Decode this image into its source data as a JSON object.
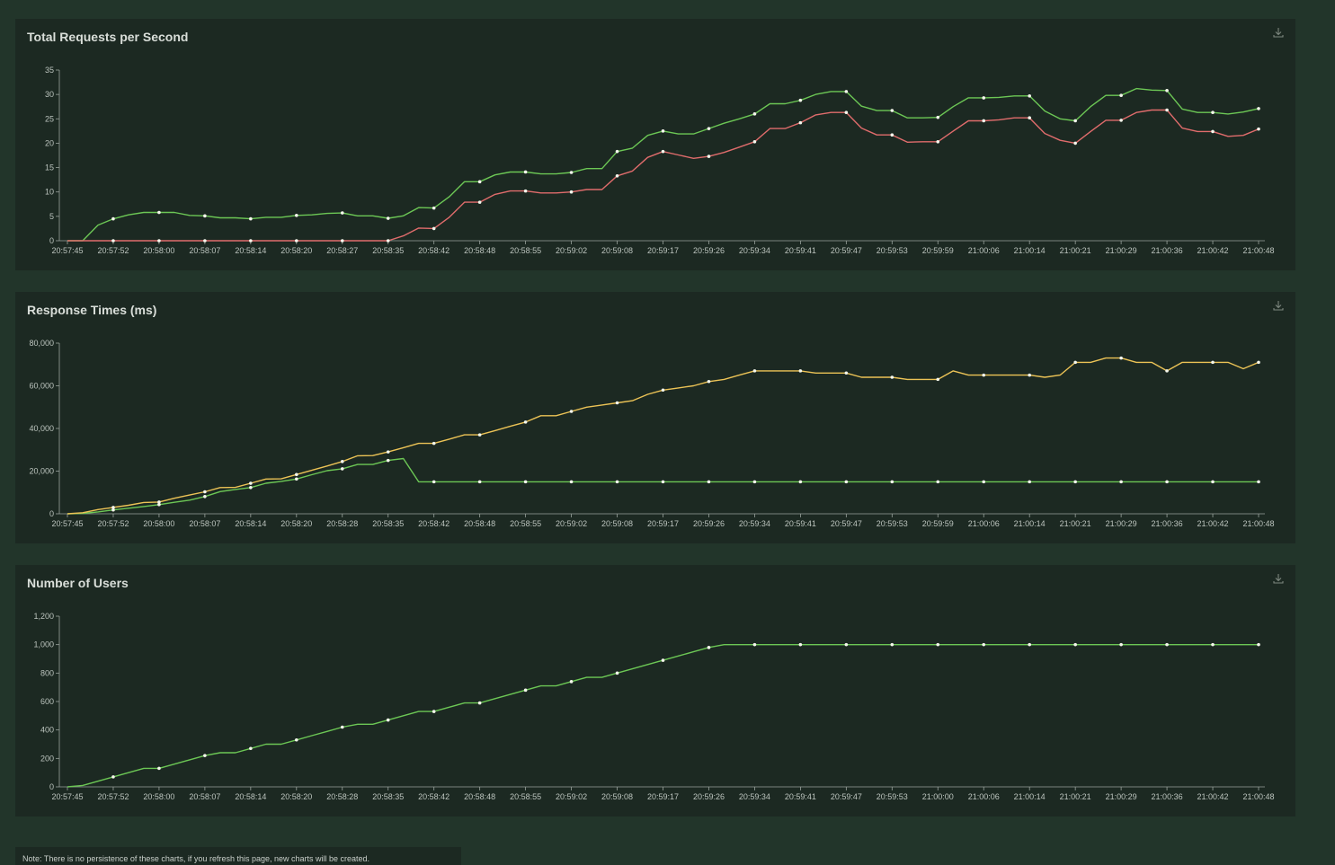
{
  "colors": {
    "green": "#6cc755",
    "red": "#e06c6c",
    "yellow": "#ecc356",
    "axis": "#9aa39d"
  },
  "icons": {
    "download": "download-icon"
  },
  "note": "Note: There is no persistence of these charts, if you refresh this page, new charts will be created.",
  "chart_data": [
    {
      "type": "line",
      "title": "Total Requests per Second",
      "ylim": [
        0,
        35
      ],
      "yticks": [
        "0",
        "5",
        "10",
        "15",
        "20",
        "25",
        "30",
        "35"
      ],
      "ytick_values": [
        0,
        5,
        10,
        15,
        20,
        25,
        30,
        35
      ],
      "xtick_labels": [
        "20:57:45",
        "20:57:52",
        "20:58:00",
        "20:58:07",
        "20:58:14",
        "20:58:20",
        "20:58:27",
        "20:58:35",
        "20:58:42",
        "20:58:48",
        "20:58:55",
        "20:59:02",
        "20:59:08",
        "20:59:17",
        "20:59:26",
        "20:59:34",
        "20:59:41",
        "20:59:47",
        "20:59:53",
        "20:59:59",
        "21:00:06",
        "21:00:14",
        "21:00:21",
        "21:00:29",
        "21:00:36",
        "21:00:42",
        "21:00:48"
      ],
      "series": [
        {
          "color": "#6cc755",
          "values": [
            0,
            0,
            3.2,
            4.5,
            5.3,
            5.8,
            5.8,
            5.8,
            5.2,
            5.1,
            4.7,
            4.7,
            4.5,
            4.8,
            4.8,
            5.2,
            5.3,
            5.6,
            5.7,
            5.1,
            5.1,
            4.6,
            5.1,
            6.8,
            6.7,
            9.0,
            12.1,
            12.1,
            13.5,
            14.1,
            14.1,
            13.7,
            13.7,
            14.0,
            14.8,
            14.8,
            18.3,
            19.0,
            21.6,
            22.5,
            21.9,
            21.9,
            23.0,
            24.1,
            25.0,
            26.0,
            28.1,
            28.1,
            28.8,
            30.0,
            30.6,
            30.6,
            27.6,
            26.7,
            26.7,
            25.2,
            25.2,
            25.3,
            27.5,
            29.3,
            29.3,
            29.4,
            29.7,
            29.7,
            26.6,
            25.0,
            24.6,
            27.5,
            29.8,
            29.8,
            31.2,
            30.9,
            30.8,
            27.0,
            26.3,
            26.3,
            26.0,
            26.4,
            27.1
          ]
        },
        {
          "color": "#e06c6c",
          "values": [
            0,
            0,
            0,
            0,
            0,
            0,
            0,
            0,
            0,
            0,
            0,
            0,
            0,
            0,
            0,
            0,
            0,
            0,
            0,
            0,
            0,
            0,
            1,
            2.6,
            2.5,
            4.8,
            7.9,
            7.9,
            9.5,
            10.2,
            10.2,
            9.8,
            9.8,
            10.0,
            10.5,
            10.5,
            13.3,
            14.3,
            17.1,
            18.3,
            17.6,
            16.9,
            17.3,
            18.1,
            19.2,
            20.3,
            23.0,
            23.0,
            24.2,
            25.8,
            26.3,
            26.3,
            23.1,
            21.7,
            21.7,
            20.2,
            20.3,
            20.3,
            22.5,
            24.6,
            24.6,
            24.8,
            25.2,
            25.2,
            22.0,
            20.6,
            20.0,
            22.4,
            24.7,
            24.7,
            26.3,
            26.8,
            26.8,
            23.1,
            22.4,
            22.4,
            21.4,
            21.6,
            22.9
          ]
        }
      ]
    },
    {
      "type": "line",
      "title": "Response Times (ms)",
      "ylim": [
        0,
        80000
      ],
      "yticks": [
        "0",
        "20,000",
        "40,000",
        "60,000",
        "80,000"
      ],
      "ytick_values": [
        0,
        20000,
        40000,
        60000,
        80000
      ],
      "xtick_labels": [
        "20:57:45",
        "20:57:52",
        "20:58:00",
        "20:58:07",
        "20:58:14",
        "20:58:20",
        "20:58:28",
        "20:58:35",
        "20:58:42",
        "20:58:48",
        "20:58:55",
        "20:59:02",
        "20:59:08",
        "20:59:17",
        "20:59:26",
        "20:59:34",
        "20:59:41",
        "20:59:47",
        "20:59:53",
        "20:59:59",
        "21:00:06",
        "21:00:14",
        "21:00:21",
        "21:00:29",
        "21:00:36",
        "21:00:42",
        "21:00:48"
      ],
      "series": [
        {
          "color": "#6cc755",
          "values": [
            0,
            200,
            900,
            1800,
            2600,
            3400,
            4300,
            5400,
            6400,
            8100,
            10400,
            11400,
            12300,
            14300,
            15200,
            16300,
            18300,
            20200,
            21100,
            23100,
            23100,
            25000,
            25900,
            15000,
            15000,
            15000,
            15000,
            15000,
            15000,
            15000,
            15000,
            15000,
            15000,
            15000,
            15000,
            15000,
            15000,
            15000,
            15000,
            15000,
            15000,
            15000,
            15000,
            15000,
            15000,
            15000,
            15000,
            15000,
            15000,
            15000,
            15000,
            15000,
            15000,
            15000,
            15000,
            15000,
            15000,
            15000,
            15000,
            15000,
            15000,
            15000,
            15000,
            15000,
            15000,
            15000,
            15000,
            15000,
            15000,
            15000,
            15000,
            15000,
            15000,
            15000,
            15000,
            15000,
            15000,
            15000,
            15000
          ]
        },
        {
          "color": "#ecc356",
          "values": [
            0,
            500,
            2000,
            3000,
            4000,
            5300,
            5500,
            7300,
            8800,
            10300,
            12300,
            12400,
            14300,
            16300,
            16400,
            18400,
            20400,
            22400,
            24500,
            27200,
            27300,
            29000,
            31000,
            33000,
            33000,
            35000,
            37000,
            37000,
            39000,
            41000,
            43000,
            46000,
            46000,
            48000,
            50000,
            51000,
            52000,
            53000,
            56000,
            58000,
            59000,
            60000,
            62000,
            63000,
            65000,
            67000,
            67000,
            67000,
            67000,
            66000,
            66000,
            66000,
            64000,
            64000,
            64000,
            63000,
            63000,
            63000,
            67000,
            65000,
            65000,
            65000,
            65000,
            65000,
            64000,
            65000,
            71000,
            71000,
            73000,
            73000,
            71000,
            71000,
            67000,
            71000,
            71000,
            71000,
            71000,
            68000,
            71000
          ]
        }
      ]
    },
    {
      "type": "line",
      "title": "Number of Users",
      "ylim": [
        0,
        1200
      ],
      "yticks": [
        "0",
        "200",
        "400",
        "600",
        "800",
        "1,000",
        "1,200"
      ],
      "ytick_values": [
        0,
        200,
        400,
        600,
        800,
        1000,
        1200
      ],
      "xtick_labels": [
        "20:57:45",
        "20:57:52",
        "20:58:00",
        "20:58:07",
        "20:58:14",
        "20:58:20",
        "20:58:28",
        "20:58:35",
        "20:58:42",
        "20:58:48",
        "20:58:55",
        "20:59:02",
        "20:59:08",
        "20:59:17",
        "20:59:26",
        "20:59:34",
        "20:59:41",
        "20:59:47",
        "20:59:53",
        "21:00:00",
        "21:00:06",
        "21:00:14",
        "21:00:21",
        "21:00:29",
        "21:00:36",
        "21:00:42",
        "21:00:48"
      ],
      "series": [
        {
          "color": "#6cc755",
          "values": [
            0,
            10,
            40,
            70,
            100,
            130,
            130,
            160,
            190,
            220,
            240,
            240,
            270,
            300,
            300,
            330,
            360,
            390,
            420,
            440,
            440,
            470,
            500,
            530,
            530,
            560,
            590,
            590,
            620,
            650,
            680,
            710,
            710,
            740,
            770,
            770,
            800,
            830,
            860,
            890,
            920,
            950,
            980,
            1000,
            1000,
            1000,
            1000,
            1000,
            1000,
            1000,
            1000,
            1000,
            1000,
            1000,
            1000,
            1000,
            1000,
            1000,
            1000,
            1000,
            1000,
            1000,
            1000,
            1000,
            1000,
            1000,
            1000,
            1000,
            1000,
            1000,
            1000,
            1000,
            1000,
            1000,
            1000,
            1000,
            1000,
            1000,
            1000
          ]
        }
      ]
    }
  ]
}
